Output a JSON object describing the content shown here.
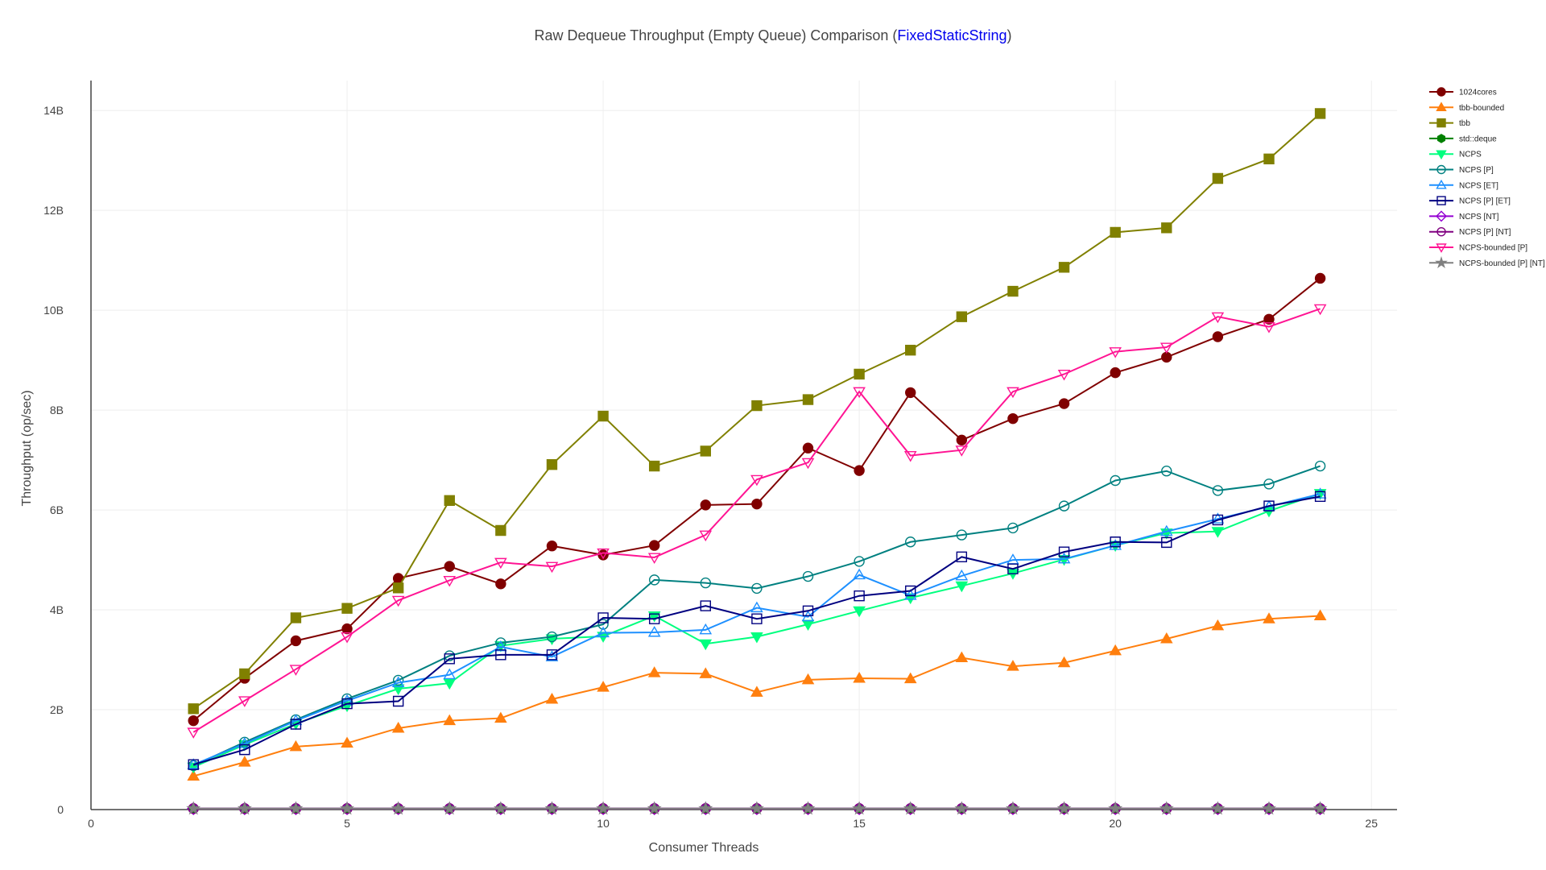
{
  "chart_data": {
    "type": "line",
    "title_prefix": "Raw Dequeue Throughput (Empty Queue) Comparison (",
    "title_highlight": "FixedStaticString",
    "title_suffix": ")",
    "title_highlight_color": "#0000ee",
    "xlabel": "Consumer Threads",
    "ylabel": "Throughput (op/sec)",
    "xlim": [
      0,
      25.5
    ],
    "ylim": [
      0,
      14.6
    ],
    "x_ticks": [
      0,
      5,
      10,
      15,
      20,
      25
    ],
    "x_tick_labels": [
      "0",
      "5",
      "10",
      "15",
      "20",
      "25"
    ],
    "y_ticks": [
      0,
      2,
      4,
      6,
      8,
      10,
      12,
      14
    ],
    "y_tick_labels": [
      "0",
      "2B",
      "4B",
      "6B",
      "8B",
      "10B",
      "12B",
      "14B"
    ],
    "y_unit": "billions of op/sec",
    "grid": true,
    "legend_position": "top-right",
    "x": [
      2,
      3,
      4,
      5,
      6,
      7,
      8,
      9,
      10,
      11,
      12,
      13,
      14,
      15,
      16,
      17,
      18,
      19,
      20,
      21,
      22,
      23,
      24
    ],
    "series": [
      {
        "name": "1024cores",
        "color": "#800000",
        "marker": "circle",
        "filled": true,
        "values": [
          1.78,
          2.63,
          3.38,
          3.62,
          4.63,
          4.87,
          4.52,
          5.28,
          5.1,
          5.29,
          6.1,
          6.12,
          7.24,
          6.79,
          8.35,
          7.4,
          7.83,
          8.13,
          8.75,
          9.06,
          9.47,
          9.82,
          10.64
        ]
      },
      {
        "name": "tbb-bounded",
        "color": "#ff7f0e",
        "marker": "triangle-up",
        "filled": true,
        "values": [
          0.67,
          0.95,
          1.26,
          1.33,
          1.63,
          1.78,
          1.83,
          2.21,
          2.45,
          2.74,
          2.72,
          2.35,
          2.6,
          2.63,
          2.62,
          3.04,
          2.87,
          2.94,
          3.18,
          3.42,
          3.68,
          3.82,
          3.88
        ]
      },
      {
        "name": "tbb",
        "color": "#808000",
        "marker": "square",
        "filled": true,
        "values": [
          2.02,
          2.72,
          3.84,
          4.03,
          4.44,
          6.19,
          5.59,
          6.91,
          7.88,
          6.88,
          7.18,
          8.09,
          8.21,
          8.72,
          9.2,
          9.87,
          10.38,
          10.86,
          11.56,
          11.65,
          12.64,
          13.03,
          13.94
        ]
      },
      {
        "name": "std::deque",
        "color": "#008000",
        "marker": "hexagon",
        "filled": true,
        "values": [
          0.02,
          0.02,
          0.02,
          0.02,
          0.02,
          0.02,
          0.02,
          0.02,
          0.02,
          0.02,
          0.02,
          0.02,
          0.02,
          0.02,
          0.02,
          0.02,
          0.02,
          0.02,
          0.02,
          0.02,
          0.02,
          0.02,
          0.02
        ]
      },
      {
        "name": "NCPS",
        "color": "#00ff7f",
        "marker": "triangle-down",
        "filled": true,
        "values": [
          0.85,
          1.3,
          1.72,
          2.08,
          2.42,
          2.53,
          3.28,
          3.42,
          3.47,
          3.88,
          3.32,
          3.46,
          3.71,
          3.98,
          4.24,
          4.48,
          4.73,
          5.01,
          5.29,
          5.54,
          5.57,
          5.98,
          6.33
        ]
      },
      {
        "name": "NCPS [P]",
        "color": "#008080",
        "marker": "circle",
        "filled": false,
        "values": [
          0.88,
          1.35,
          1.8,
          2.22,
          2.59,
          3.08,
          3.34,
          3.46,
          3.71,
          4.6,
          4.54,
          4.43,
          4.67,
          4.97,
          5.36,
          5.5,
          5.64,
          6.08,
          6.59,
          6.78,
          6.39,
          6.52,
          6.88
        ]
      },
      {
        "name": "NCPS [ET]",
        "color": "#1e90ff",
        "marker": "triangle-up",
        "filled": false,
        "values": [
          0.9,
          1.32,
          1.78,
          2.18,
          2.54,
          2.7,
          3.26,
          3.06,
          3.54,
          3.55,
          3.6,
          4.04,
          3.86,
          4.7,
          4.29,
          4.68,
          5.0,
          5.02,
          5.29,
          5.57,
          5.82,
          6.07,
          6.32
        ]
      },
      {
        "name": "NCPS [P] [ET]",
        "color": "#000080",
        "marker": "square",
        "filled": false,
        "values": [
          0.9,
          1.2,
          1.71,
          2.12,
          2.17,
          3.02,
          3.1,
          3.1,
          3.84,
          3.82,
          4.08,
          3.82,
          3.98,
          4.28,
          4.38,
          5.06,
          4.82,
          5.16,
          5.36,
          5.35,
          5.8,
          6.08,
          6.27
        ]
      },
      {
        "name": "NCPS [NT]",
        "color": "#9400d3",
        "marker": "diamond",
        "filled": false,
        "values": [
          0.02,
          0.02,
          0.02,
          0.02,
          0.02,
          0.02,
          0.02,
          0.02,
          0.02,
          0.02,
          0.02,
          0.02,
          0.02,
          0.02,
          0.02,
          0.02,
          0.02,
          0.02,
          0.02,
          0.02,
          0.02,
          0.02,
          0.02
        ]
      },
      {
        "name": "NCPS [P] [NT]",
        "color": "#800080",
        "marker": "circle",
        "filled": false,
        "values": [
          0.02,
          0.02,
          0.02,
          0.02,
          0.02,
          0.02,
          0.02,
          0.02,
          0.02,
          0.02,
          0.02,
          0.02,
          0.02,
          0.02,
          0.02,
          0.02,
          0.02,
          0.02,
          0.02,
          0.02,
          0.02,
          0.02,
          0.02
        ]
      },
      {
        "name": "NCPS-bounded [P]",
        "color": "#ff1493",
        "marker": "triangle-down",
        "filled": false,
        "values": [
          1.55,
          2.18,
          2.81,
          3.46,
          4.19,
          4.59,
          4.95,
          4.87,
          5.14,
          5.05,
          5.5,
          6.61,
          6.95,
          8.37,
          7.09,
          7.2,
          8.37,
          8.72,
          9.17,
          9.26,
          9.87,
          9.67,
          10.03
        ]
      },
      {
        "name": "NCPS-bounded [P] [NT]",
        "color": "#808080",
        "marker": "star",
        "filled": true,
        "values": [
          0.02,
          0.02,
          0.02,
          0.02,
          0.02,
          0.02,
          0.02,
          0.02,
          0.02,
          0.02,
          0.02,
          0.02,
          0.02,
          0.02,
          0.02,
          0.02,
          0.02,
          0.02,
          0.02,
          0.02,
          0.02,
          0.02,
          0.02
        ]
      }
    ]
  }
}
